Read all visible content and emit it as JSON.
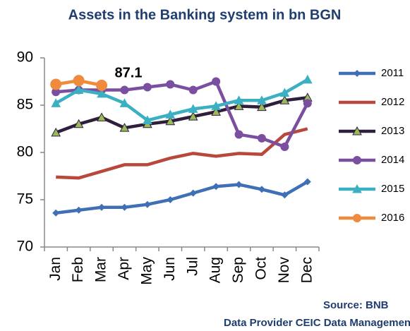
{
  "chart_data": {
    "type": "line",
    "title": "Assets in the Banking system in bn BGN",
    "categories": [
      "Jan",
      "Feb",
      "Mar",
      "Apr",
      "May",
      "Jun",
      "Jul",
      "Aug",
      "Sep",
      "Oct",
      "Nov",
      "Dec"
    ],
    "ylim": [
      70,
      90
    ],
    "yticks": [
      70,
      75,
      80,
      85,
      90
    ],
    "grid": false,
    "legend": "right",
    "series": [
      {
        "name": "2011",
        "color": "#3f6fb4",
        "marker": "diamond",
        "values": [
          73.6,
          73.9,
          74.2,
          74.2,
          74.5,
          75.0,
          75.7,
          76.4,
          76.6,
          76.1,
          75.5,
          76.9
        ]
      },
      {
        "name": "2012",
        "color": "#b8483c",
        "marker": "none",
        "values": [
          77.4,
          77.3,
          78.0,
          78.7,
          78.7,
          79.4,
          79.9,
          79.6,
          79.9,
          79.8,
          81.9,
          82.5
        ]
      },
      {
        "name": "2013",
        "color": "#2e1f3d",
        "marker": "triangle",
        "marker_color": "#9bbb59",
        "values": [
          82.1,
          83.0,
          83.7,
          82.6,
          83.0,
          83.3,
          83.8,
          84.3,
          84.9,
          84.8,
          85.5,
          85.8
        ]
      },
      {
        "name": "2014",
        "color": "#7b4fa0",
        "marker": "circle",
        "values": [
          86.4,
          86.6,
          86.6,
          86.6,
          86.9,
          87.2,
          86.6,
          87.5,
          81.9,
          81.5,
          80.6,
          85.2
        ]
      },
      {
        "name": "2015",
        "color": "#3cb0c3",
        "marker": "triangle",
        "values": [
          85.2,
          86.6,
          86.2,
          85.2,
          83.4,
          84.0,
          84.6,
          84.9,
          85.5,
          85.5,
          86.3,
          87.7
        ]
      },
      {
        "name": "2016",
        "color": "#f08a3c",
        "marker": "circle",
        "values": [
          87.2,
          87.6,
          87.1,
          null,
          null,
          null,
          null,
          null,
          null,
          null,
          null,
          null
        ]
      }
    ],
    "annotation": "87.1",
    "source": "Source: BNB",
    "provider": "Data Provider CEIC Data Management"
  }
}
